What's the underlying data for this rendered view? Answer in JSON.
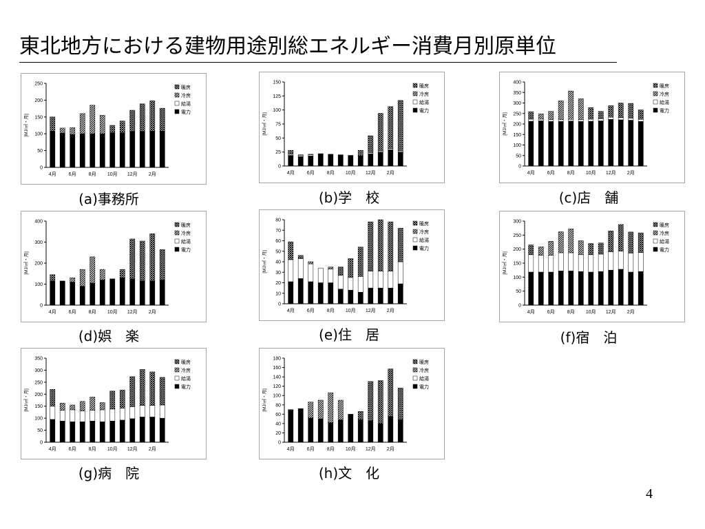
{
  "slide": {
    "title": "東北地方における建物用途別総エネルギー消費月別原単位",
    "page_number": "4"
  },
  "colors": {
    "denryoku": "#000000",
    "kyuto": "#ffffff",
    "reibo": "diagonal-hatch",
    "danbo": "crosshatch",
    "frame": "#a6a6a6"
  },
  "chart_data": [
    {
      "type": "bar",
      "stacked": true,
      "caption": "(a)事務所",
      "ylabel": "[MJ/㎡・月]",
      "ylim": [
        0,
        250
      ],
      "yticks": [
        0,
        50,
        100,
        150,
        200,
        250
      ],
      "categories": [
        "4月",
        "5月",
        "6月",
        "7月",
        "8月",
        "9月",
        "10月",
        "11月",
        "12月",
        "1月",
        "2月",
        "3月"
      ],
      "xticklabels": [
        "4月",
        "",
        "6月",
        "",
        "8月",
        "",
        "10月",
        "",
        "12月",
        "",
        "2月",
        ""
      ],
      "legend": [
        "暖房",
        "冷房",
        "給湯",
        "電力"
      ],
      "legend_position": "top-right",
      "grid": false,
      "series": [
        {
          "name": "電力",
          "values": [
            108,
            102,
            98,
            100,
            100,
            100,
            103,
            103,
            107,
            107,
            108,
            108
          ]
        },
        {
          "name": "給湯",
          "values": [
            0,
            0,
            0,
            0,
            0,
            0,
            0,
            0,
            0,
            0,
            0,
            0
          ]
        },
        {
          "name": "冷房",
          "values": [
            0,
            15,
            20,
            60,
            85,
            55,
            0,
            0,
            0,
            0,
            0,
            0
          ]
        },
        {
          "name": "暖房",
          "values": [
            42,
            0,
            0,
            0,
            0,
            0,
            22,
            35,
            63,
            82,
            90,
            68
          ]
        }
      ]
    },
    {
      "type": "bar",
      "stacked": true,
      "caption": "(b)学　校",
      "ylabel": "[MJ/㎡・月]",
      "ylim": [
        0,
        150
      ],
      "yticks": [
        0,
        25,
        50,
        75,
        100,
        125,
        150
      ],
      "categories": [
        "4月",
        "5月",
        "6月",
        "7月",
        "8月",
        "9月",
        "10月",
        "11月",
        "12月",
        "1月",
        "2月",
        "3月"
      ],
      "xticklabels": [
        "4月",
        "",
        "6月",
        "",
        "8月",
        "",
        "10月",
        "",
        "12月",
        "",
        "2月",
        ""
      ],
      "legend": [
        "暖房",
        "冷房",
        "給湯",
        "電力"
      ],
      "legend_position": "top-right",
      "grid": false,
      "series": [
        {
          "name": "電力",
          "values": [
            19,
            17,
            18,
            22,
            21,
            20,
            19,
            18,
            22,
            25,
            29,
            25
          ]
        },
        {
          "name": "給湯",
          "values": [
            2,
            2,
            2,
            0,
            0,
            0,
            0,
            0,
            2,
            2,
            2,
            2
          ]
        },
        {
          "name": "冷房",
          "values": [
            0,
            1,
            1,
            0,
            0,
            0,
            0,
            0,
            0,
            0,
            0,
            0
          ]
        },
        {
          "name": "暖房",
          "values": [
            7,
            0,
            0,
            0,
            0,
            0,
            0,
            10,
            30,
            67,
            75,
            90
          ]
        }
      ]
    },
    {
      "type": "bar",
      "stacked": true,
      "caption": "(c)店　舗",
      "ylabel": "[MJ/㎡・月]",
      "ylim": [
        0,
        400
      ],
      "yticks": [
        0,
        50,
        100,
        150,
        200,
        250,
        300,
        350,
        400
      ],
      "categories": [
        "4月",
        "5月",
        "6月",
        "7月",
        "8月",
        "9月",
        "10月",
        "11月",
        "12月",
        "1月",
        "2月",
        "3月"
      ],
      "xticklabels": [
        "4月",
        "",
        "6月",
        "",
        "8月",
        "",
        "10月",
        "",
        "12月",
        "",
        "2月",
        ""
      ],
      "legend": [
        "暖房",
        "冷房",
        "給湯",
        "電力"
      ],
      "legend_position": "top-right",
      "grid": false,
      "series": [
        {
          "name": "電力",
          "values": [
            213,
            215,
            212,
            212,
            214,
            212,
            213,
            215,
            222,
            220,
            218,
            212
          ]
        },
        {
          "name": "給湯",
          "values": [
            10,
            8,
            8,
            8,
            8,
            8,
            10,
            10,
            10,
            10,
            10,
            10
          ]
        },
        {
          "name": "冷房",
          "values": [
            0,
            25,
            40,
            90,
            135,
            100,
            0,
            0,
            0,
            0,
            0,
            0
          ]
        },
        {
          "name": "暖房",
          "values": [
            35,
            0,
            0,
            0,
            0,
            0,
            55,
            35,
            55,
            70,
            70,
            45
          ]
        }
      ]
    },
    {
      "type": "bar",
      "stacked": true,
      "caption": "(d)娯　楽",
      "ylabel": "[MJ/㎡・月]",
      "ylim": [
        0,
        400
      ],
      "yticks": [
        0,
        100,
        200,
        300,
        400
      ],
      "categories": [
        "4月",
        "5月",
        "6月",
        "7月",
        "8月",
        "9月",
        "10月",
        "11月",
        "12月",
        "1月",
        "2月",
        "3月"
      ],
      "xticklabels": [
        "4月",
        "",
        "6月",
        "",
        "8月",
        "",
        "10月",
        "",
        "12月",
        "",
        "2月",
        ""
      ],
      "legend": [
        "暖房",
        "冷房",
        "給湯",
        "電力"
      ],
      "legend_position": "top-right",
      "grid": false,
      "series": [
        {
          "name": "電力",
          "values": [
            115,
            115,
            110,
            90,
            105,
            120,
            125,
            130,
            125,
            115,
            115,
            120
          ]
        },
        {
          "name": "給湯",
          "values": [
            0,
            0,
            0,
            0,
            0,
            0,
            0,
            0,
            0,
            0,
            0,
            0
          ]
        },
        {
          "name": "冷房",
          "values": [
            0,
            0,
            20,
            80,
            125,
            50,
            0,
            0,
            0,
            0,
            0,
            0
          ]
        },
        {
          "name": "暖房",
          "values": [
            30,
            0,
            0,
            0,
            0,
            0,
            0,
            40,
            190,
            190,
            225,
            145
          ]
        }
      ]
    },
    {
      "type": "bar",
      "stacked": true,
      "caption": "(e)住　居",
      "ylabel": "[MJ/㎡・月]",
      "ylim": [
        0,
        80
      ],
      "yticks": [
        0,
        10,
        20,
        30,
        40,
        50,
        60,
        70,
        80
      ],
      "categories": [
        "4月",
        "5月",
        "6月",
        "7月",
        "8月",
        "9月",
        "10月",
        "11月",
        "12月",
        "1月",
        "2月",
        "3月"
      ],
      "xticklabels": [
        "4月",
        "",
        "6月",
        "",
        "8月",
        "",
        "10月",
        "",
        "12月",
        "",
        "2月",
        ""
      ],
      "legend": [
        "暖房",
        "冷房",
        "給湯",
        "電力"
      ],
      "legend_position": "top-right",
      "grid": false,
      "series": [
        {
          "name": "電力",
          "values": [
            21,
            24,
            21,
            20,
            20,
            14,
            13,
            11,
            15,
            15,
            15,
            19
          ]
        },
        {
          "name": "給湯",
          "values": [
            21,
            19,
            17,
            14,
            13,
            13,
            12,
            15,
            16,
            16,
            16,
            21
          ]
        },
        {
          "name": "冷房",
          "values": [
            0,
            0,
            2,
            0,
            2,
            0,
            0,
            0,
            0,
            0,
            0,
            0
          ]
        },
        {
          "name": "暖房",
          "values": [
            17,
            3,
            0,
            0,
            0,
            8,
            18,
            28,
            47,
            49,
            47,
            32
          ]
        }
      ]
    },
    {
      "type": "bar",
      "stacked": true,
      "caption": "(f)宿　泊",
      "ylabel": "[MJ/㎡・月]",
      "ylim": [
        0,
        300
      ],
      "yticks": [
        0,
        50,
        100,
        150,
        200,
        250,
        300
      ],
      "categories": [
        "4月",
        "5月",
        "6月",
        "7月",
        "8月",
        "9月",
        "10月",
        "11月",
        "12月",
        "1月",
        "2月",
        "3月"
      ],
      "xticklabels": [
        "4月",
        "",
        "6月",
        "",
        "8月",
        "",
        "10月",
        "",
        "12月",
        "",
        "2月",
        ""
      ],
      "legend": [
        "暖房",
        "冷房",
        "給湯",
        "電力"
      ],
      "legend_position": "top-right",
      "grid": false,
      "series": [
        {
          "name": "電力",
          "values": [
            118,
            118,
            118,
            122,
            122,
            120,
            118,
            120,
            125,
            128,
            118,
            120
          ]
        },
        {
          "name": "給湯",
          "values": [
            62,
            60,
            60,
            65,
            65,
            60,
            62,
            62,
            65,
            65,
            68,
            68
          ]
        },
        {
          "name": "冷房",
          "values": [
            0,
            30,
            50,
            75,
            85,
            50,
            0,
            0,
            0,
            0,
            0,
            0
          ]
        },
        {
          "name": "暖房",
          "values": [
            35,
            0,
            0,
            0,
            0,
            0,
            40,
            40,
            75,
            95,
            75,
            70
          ]
        }
      ]
    },
    {
      "type": "bar",
      "stacked": true,
      "caption": "(g)病　院",
      "ylabel": "[MJ/㎡・月]",
      "ylim": [
        0,
        350
      ],
      "yticks": [
        0,
        50,
        100,
        150,
        200,
        250,
        300,
        350
      ],
      "categories": [
        "4月",
        "5月",
        "6月",
        "7月",
        "8月",
        "9月",
        "10月",
        "11月",
        "12月",
        "1月",
        "2月",
        "3月"
      ],
      "xticklabels": [
        "4月",
        "",
        "6月",
        "",
        "8月",
        "",
        "10月",
        "",
        "12月",
        "",
        "2月",
        ""
      ],
      "legend": [
        "暖房",
        "冷房",
        "給湯",
        "電力"
      ],
      "legend_position": "top-right",
      "grid": false,
      "series": [
        {
          "name": "電力",
          "values": [
            95,
            88,
            85,
            85,
            88,
            85,
            88,
            92,
            98,
            105,
            105,
            100
          ]
        },
        {
          "name": "給湯",
          "values": [
            55,
            45,
            50,
            45,
            45,
            50,
            50,
            50,
            50,
            48,
            48,
            55
          ]
        },
        {
          "name": "冷房",
          "values": [
            0,
            30,
            20,
            40,
            55,
            30,
            0,
            0,
            0,
            0,
            0,
            0
          ]
        },
        {
          "name": "暖房",
          "values": [
            70,
            0,
            0,
            0,
            0,
            0,
            75,
            75,
            125,
            150,
            140,
            115
          ]
        }
      ]
    },
    {
      "type": "bar",
      "stacked": true,
      "caption": "(h)文　化",
      "ylabel": "[MJ/㎡・月]",
      "ylim": [
        0,
        180
      ],
      "yticks": [
        0,
        20,
        40,
        60,
        80,
        100,
        120,
        140,
        160,
        180
      ],
      "categories": [
        "4月",
        "5月",
        "6月",
        "7月",
        "8月",
        "9月",
        "10月",
        "11月",
        "12月",
        "1月",
        "2月",
        "3月"
      ],
      "xticklabels": [
        "4月",
        "",
        "6月",
        "",
        "8月",
        "",
        "10月",
        "",
        "12月",
        "",
        "2月",
        ""
      ],
      "legend": [
        "暖房",
        "冷房",
        "給湯",
        "電力"
      ],
      "legend_position": "top-right",
      "grid": false,
      "series": [
        {
          "name": "電力",
          "values": [
            68,
            72,
            52,
            50,
            42,
            48,
            60,
            48,
            46,
            40,
            55,
            48
          ]
        },
        {
          "name": "給湯",
          "values": [
            0,
            0,
            0,
            0,
            0,
            0,
            0,
            0,
            0,
            0,
            0,
            0
          ]
        },
        {
          "name": "冷房",
          "values": [
            0,
            0,
            34,
            40,
            64,
            42,
            0,
            0,
            0,
            0,
            0,
            0
          ]
        },
        {
          "name": "暖房",
          "values": [
            2,
            0,
            0,
            0,
            0,
            0,
            0,
            18,
            84,
            92,
            102,
            68
          ]
        }
      ]
    }
  ]
}
